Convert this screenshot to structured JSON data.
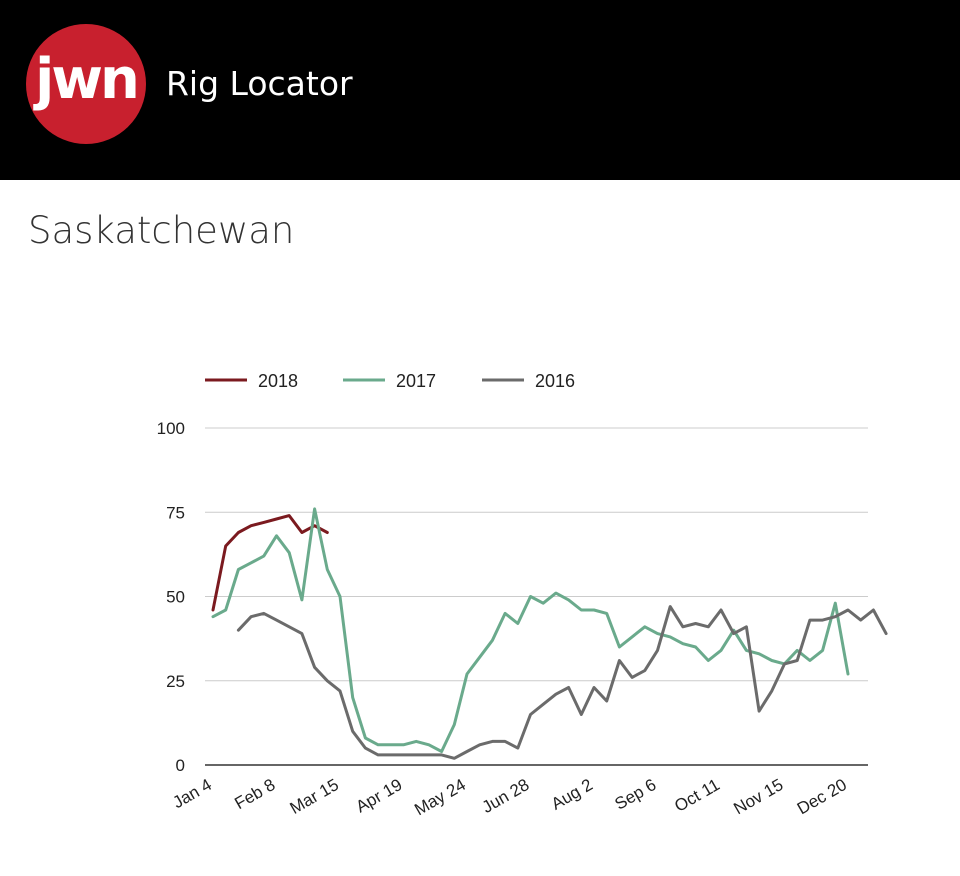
{
  "header": {
    "logo_text": "jwn",
    "app_title": "Rig Locator"
  },
  "page": {
    "title": "Saskatchewan"
  },
  "colors": {
    "header_bg": "#000000",
    "logo_red": "#c8202e",
    "series_2018": "#7b1a1f",
    "series_2017": "#6aaa8c",
    "series_2016": "#6b6b6b",
    "gridline": "#cccccc"
  },
  "chart_data": {
    "type": "line",
    "title": "Saskatchewan",
    "xlabel": "",
    "ylabel": "",
    "ylim": [
      0,
      100
    ],
    "yticks": [
      0,
      25,
      50,
      75,
      100
    ],
    "x_tick_labels": [
      "Jan 4",
      "Feb 8",
      "Mar 15",
      "Apr 19",
      "May 24",
      "Jun 28",
      "Aug 2",
      "Sep 6",
      "Oct 11",
      "Nov 15",
      "Dec 20"
    ],
    "x_tick_weeks": [
      1,
      6,
      11,
      16,
      21,
      26,
      31,
      36,
      41,
      46,
      51
    ],
    "grid": true,
    "legend_position": "top",
    "series": [
      {
        "name": "2018",
        "color": "#7b1a1f",
        "start_week": 1,
        "values": [
          46,
          65,
          69,
          71,
          72,
          73,
          74,
          69,
          71,
          69
        ]
      },
      {
        "name": "2017",
        "color": "#6aaa8c",
        "start_week": 1,
        "values": [
          44,
          46,
          58,
          60,
          62,
          68,
          63,
          49,
          76,
          58,
          50,
          20,
          8,
          6,
          6,
          6,
          7,
          6,
          4,
          12,
          27,
          32,
          37,
          45,
          42,
          50,
          48,
          51,
          49,
          46,
          46,
          45,
          35,
          38,
          41,
          39,
          38,
          36,
          35,
          31,
          34,
          40,
          34,
          33,
          31,
          30,
          34,
          31,
          34,
          48,
          27
        ]
      },
      {
        "name": "2016",
        "color": "#6b6b6b",
        "start_week": 3,
        "values": [
          40,
          44,
          45,
          43,
          41,
          39,
          29,
          25,
          22,
          10,
          5,
          3,
          3,
          3,
          3,
          3,
          3,
          2,
          4,
          6,
          7,
          7,
          5,
          15,
          18,
          21,
          23,
          15,
          23,
          19,
          31,
          26,
          28,
          34,
          47,
          41,
          42,
          41,
          46,
          39,
          41,
          16,
          22,
          30,
          31,
          43,
          43,
          44,
          46,
          43,
          46,
          39
        ]
      }
    ]
  }
}
